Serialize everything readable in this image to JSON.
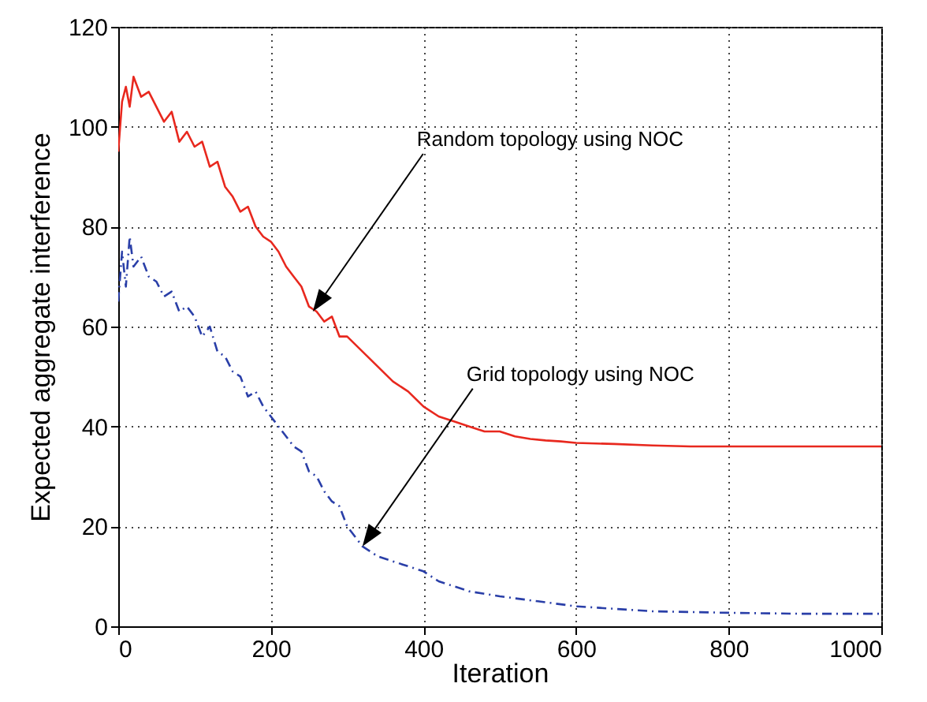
{
  "chart_data": {
    "type": "line",
    "xlabel": "Iteration",
    "ylabel": "Expected aggregate interference",
    "xlim": [
      0,
      1000
    ],
    "xticks": [
      0,
      200,
      400,
      600,
      800,
      1000
    ],
    "ylim": [
      0,
      120
    ],
    "yticks": [
      0,
      20,
      40,
      60,
      80,
      100,
      120
    ],
    "grid": true,
    "series": [
      {
        "color": "#e8281e",
        "line_style": "solid",
        "x": [
          0,
          5,
          10,
          15,
          20,
          30,
          40,
          50,
          60,
          70,
          80,
          90,
          100,
          110,
          120,
          130,
          140,
          150,
          160,
          170,
          180,
          190,
          200,
          210,
          220,
          230,
          240,
          250,
          260,
          270,
          280,
          290,
          300,
          320,
          340,
          360,
          380,
          400,
          420,
          440,
          460,
          480,
          500,
          520,
          540,
          560,
          580,
          600,
          650,
          700,
          750,
          800,
          900,
          1000
        ],
        "values": [
          95,
          105,
          108,
          104,
          110,
          106,
          107,
          104,
          101,
          103,
          97,
          99,
          96,
          97,
          92,
          93,
          88,
          86,
          83,
          84,
          80,
          78,
          77,
          75,
          72,
          70,
          68,
          64,
          63,
          61,
          62,
          58,
          58,
          55,
          52,
          49,
          47,
          44,
          42,
          41,
          40,
          39,
          39,
          38,
          37.5,
          37.2,
          37,
          36.7,
          36.5,
          36.2,
          36,
          36,
          36,
          36
        ]
      },
      {
        "color": "#2a3fa8",
        "line_style": "dashed",
        "x": [
          0,
          5,
          10,
          15,
          20,
          30,
          40,
          50,
          60,
          70,
          80,
          90,
          100,
          110,
          120,
          130,
          140,
          150,
          160,
          170,
          180,
          190,
          200,
          210,
          220,
          230,
          240,
          250,
          260,
          270,
          280,
          290,
          300,
          320,
          340,
          360,
          380,
          400,
          420,
          440,
          460,
          480,
          500,
          550,
          600,
          650,
          700,
          800,
          900,
          1000
        ],
        "values": [
          65,
          75,
          68,
          78,
          72,
          74,
          70,
          69,
          66,
          67,
          63,
          64,
          62,
          58,
          60,
          55,
          54,
          51,
          50,
          46,
          47,
          44,
          42,
          40,
          38,
          36,
          35,
          31,
          30,
          27,
          25,
          24,
          20,
          16,
          14,
          13,
          12,
          11,
          9,
          8,
          7,
          6.5,
          6,
          5,
          4,
          3.5,
          3,
          2.7,
          2.5,
          2.5
        ]
      }
    ],
    "annotations": [
      {
        "text": "Random topology using NOC",
        "x": 255,
        "y": 63
      },
      {
        "text": "Grid topology using NOC",
        "x": 320,
        "y": 16
      }
    ]
  }
}
